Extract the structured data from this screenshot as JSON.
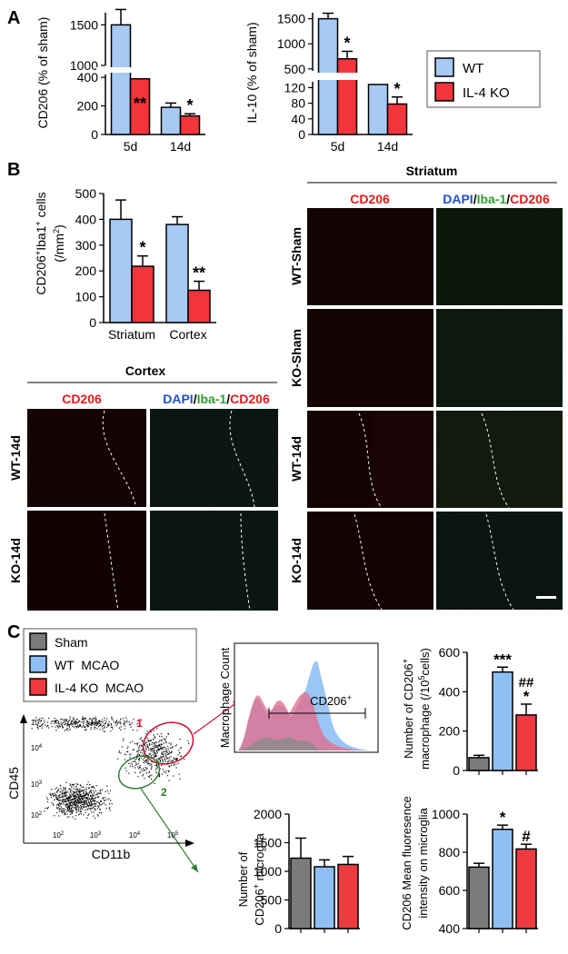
{
  "panels": {
    "A": "A",
    "B": "B",
    "C": "C"
  },
  "colors": {
    "wt": "#a7c9f2",
    "ko": "#f2353b",
    "sham": "#7b7b7b",
    "wt_bar": "#8fc0f5",
    "ko_bar": "#ef3a3f"
  },
  "legend_A": {
    "wt": "WT",
    "ko": "IL-4 KO"
  },
  "legend_C": {
    "sham": "Sham",
    "wt": "WT  MCAO",
    "ko": "IL-4 KO  MCAO"
  },
  "headers": {
    "striatum": "Striatum",
    "cortex": "Cortex",
    "cd206": "CD206",
    "merge_dapi": "DAPI",
    "merge_sep1": "/",
    "merge_iba": "Iba-1",
    "merge_sep2": "/",
    "merge_cd206": "CD206"
  },
  "row_labels": {
    "wt_sham": "WT-Sham",
    "ko_sham": "KO-Sham",
    "wt_14d": "WT-14d",
    "ko_14d": "KO-14d",
    "c_wt_14d": "WT-14d",
    "c_ko_14d": "KO-14d"
  },
  "flow": {
    "gate1": "1",
    "gate2": "2",
    "xlabel": "CD11b",
    "ylabel": "CD45",
    "hist_ylabel": "Macrophage Count",
    "hist_marker": "CD206",
    "hist_marker_sup": "+",
    "ticks_x": [
      "10",
      "10",
      "10",
      "10"
    ],
    "ticks_x_sup": [
      "2",
      "3",
      "4",
      "5"
    ],
    "ticks_y": [
      "10",
      "10",
      "10",
      "10"
    ],
    "ticks_y_sup": [
      "5",
      "4",
      "3",
      "2"
    ]
  },
  "chart_data": [
    {
      "type": "bar",
      "id": "A1",
      "ylabel": "CD206 (% of sham)",
      "categories": [
        "5d",
        "14d"
      ],
      "yticks_upper": [
        1000,
        1500
      ],
      "yticks_lower": [
        0,
        200,
        400
      ],
      "series": [
        {
          "name": "WT",
          "values": [
            1500,
            190
          ],
          "errors": [
            190,
            30
          ]
        },
        {
          "name": "IL-4 KO",
          "values": [
            390,
            130
          ],
          "errors": [
            40,
            15
          ]
        }
      ],
      "significance": [
        "**",
        "*"
      ]
    },
    {
      "type": "bar",
      "id": "A2",
      "ylabel": "IL-10 (% of sham)",
      "categories": [
        "5d",
        "14d"
      ],
      "yticks_upper": [
        500,
        1000,
        1500
      ],
      "yticks_lower": [
        0,
        40,
        80,
        120
      ],
      "series": [
        {
          "name": "WT",
          "values": [
            1500,
            128
          ],
          "errors": [
            110,
            8
          ]
        },
        {
          "name": "IL-4 KO",
          "values": [
            700,
            78
          ],
          "errors": [
            150,
            18
          ]
        }
      ],
      "significance": [
        "*",
        "*"
      ]
    },
    {
      "type": "bar",
      "id": "B1",
      "ylabel": "CD206⁺Iba1⁺ cells (/mm²)",
      "categories": [
        "Striatum",
        "Cortex"
      ],
      "ylim": [
        0,
        500
      ],
      "yticks": [
        0,
        100,
        200,
        300,
        400,
        500
      ],
      "series": [
        {
          "name": "WT",
          "values": [
            400,
            380
          ],
          "errors": [
            75,
            30
          ]
        },
        {
          "name": "IL-4 KO",
          "values": [
            218,
            125
          ],
          "errors": [
            40,
            35
          ]
        }
      ],
      "significance": [
        "*",
        "**"
      ]
    },
    {
      "type": "bar",
      "id": "C1",
      "ylabel": "Number of CD206⁺ macrophage (/10⁵cells)",
      "categories": [
        "Sham",
        "WT MCAO",
        "IL-4 KO MCAO"
      ],
      "ylim": [
        0,
        600
      ],
      "yticks": [
        0,
        200,
        400,
        600
      ],
      "values": [
        65,
        500,
        282
      ],
      "errors": [
        12,
        25,
        55
      ],
      "significance": [
        "",
        "***",
        "*"
      ],
      "significance2": [
        "",
        "",
        "##"
      ]
    },
    {
      "type": "bar",
      "id": "C2",
      "ylabel": "Number of CD206⁺ microglia",
      "categories": [
        "Sham",
        "WT MCAO",
        "IL-4 KO MCAO"
      ],
      "ylim": [
        0,
        2000
      ],
      "yticks": [
        0,
        500,
        1000,
        1500,
        2000
      ],
      "values": [
        1230,
        1080,
        1120
      ],
      "errors": [
        350,
        120,
        140
      ],
      "significance": [
        "",
        "",
        ""
      ]
    },
    {
      "type": "bar",
      "id": "C3",
      "ylabel": "CD206 Mean fluoresence intensity on microglia",
      "categories": [
        "Sham",
        "WT MCAO",
        "IL-4 KO MCAO"
      ],
      "ylim": [
        400,
        1000
      ],
      "yticks": [
        400,
        600,
        800,
        1000
      ],
      "values": [
        722,
        920,
        817
      ],
      "errors": [
        20,
        22,
        25
      ],
      "significance": [
        "",
        "*",
        "#"
      ]
    }
  ]
}
